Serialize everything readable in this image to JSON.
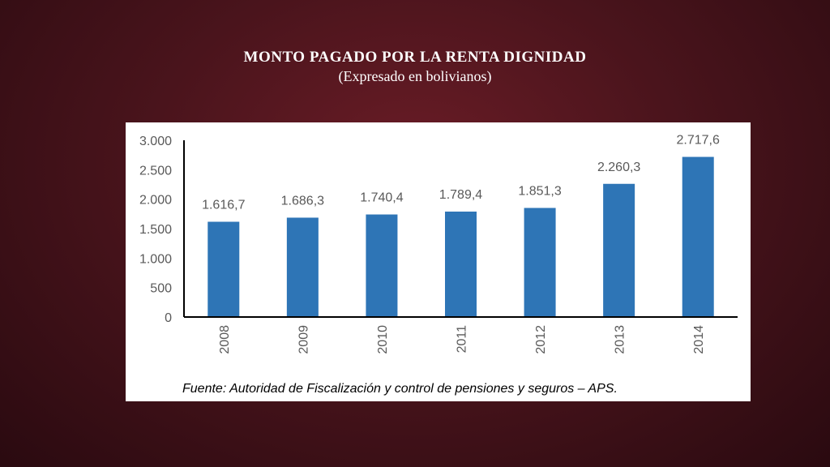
{
  "slide": {
    "title": "MONTO PAGADO POR LA RENTA DIGNIDAD",
    "subtitle": "(Expresado en bolivianos)",
    "source": "Fuente: Autoridad de Fiscalización y control de pensiones y seguros – APS."
  },
  "chart_data": {
    "type": "bar",
    "categories": [
      "2008",
      "2009",
      "2010",
      "2011",
      "2012",
      "2013",
      "2014"
    ],
    "values": [
      1616.7,
      1686.3,
      1740.4,
      1789.4,
      1851.3,
      2260.3,
      2717.6
    ],
    "data_labels": [
      "1.616,7",
      "1.686,3",
      "1.740,4",
      "1.789,4",
      "1.851,3",
      "2.260,3",
      "2.717,6"
    ],
    "yticks": [
      0,
      500,
      1000,
      1500,
      2000,
      2500,
      3000
    ],
    "ytick_labels": [
      "0",
      "500",
      "1.000",
      "1.500",
      "2.000",
      "2.500",
      "3.000"
    ],
    "ylim": [
      0,
      3000
    ],
    "grid": false,
    "bar_color": "#2e75b6"
  }
}
